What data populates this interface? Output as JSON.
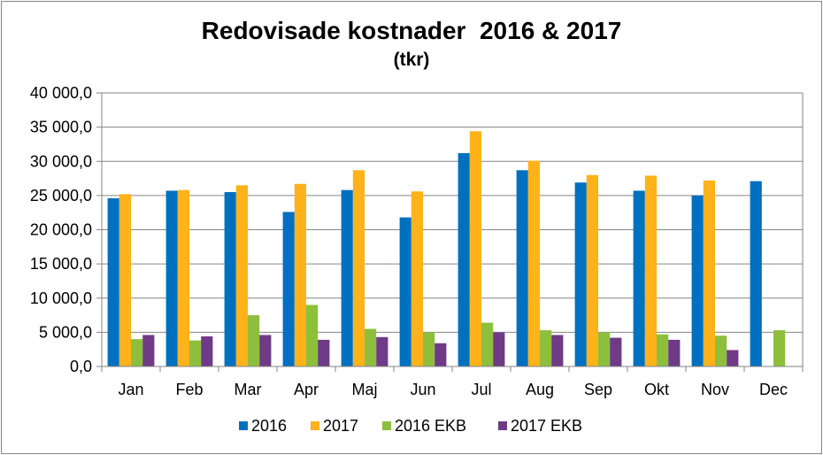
{
  "chart_data": {
    "type": "bar",
    "title": "Redovisade kostnader  2016 & 2017",
    "subtitle": "(tkr)",
    "xlabel": "",
    "ylabel": "",
    "ylim": [
      0,
      40000
    ],
    "y_ticks": [
      0,
      5000,
      10000,
      15000,
      20000,
      25000,
      30000,
      35000,
      40000
    ],
    "y_tick_labels": [
      "0,0",
      "5 000,0",
      "10 000,0",
      "15 000,0",
      "20 000,0",
      "25 000,0",
      "30 000,0",
      "35 000,0",
      "40 000,0"
    ],
    "grid": true,
    "legend_position": "bottom",
    "categories": [
      "Jan",
      "Feb",
      "Mar",
      "Apr",
      "Maj",
      "Jun",
      "Jul",
      "Aug",
      "Sep",
      "Okt",
      "Nov",
      "Dec"
    ],
    "series": [
      {
        "name": "2016",
        "color": "#0070C0",
        "values": [
          24600,
          25700,
          25500,
          22600,
          25800,
          21800,
          31200,
          28700,
          26900,
          25700,
          25000,
          27100
        ]
      },
      {
        "name": "2017",
        "color": "#FFB21A",
        "values": [
          25200,
          25800,
          26500,
          26700,
          28700,
          25600,
          34400,
          30100,
          28000,
          27900,
          27200,
          null
        ]
      },
      {
        "name": "2016 EKB",
        "color": "#8DBF3D",
        "values": [
          4000,
          3800,
          7500,
          9000,
          5500,
          5000,
          6400,
          5300,
          5000,
          4700,
          4500,
          5300
        ]
      },
      {
        "name": "2017 EKB",
        "color": "#6F3A86",
        "values": [
          4600,
          4400,
          4600,
          3900,
          4300,
          3400,
          5000,
          4600,
          4200,
          3900,
          2400,
          null
        ]
      }
    ]
  }
}
